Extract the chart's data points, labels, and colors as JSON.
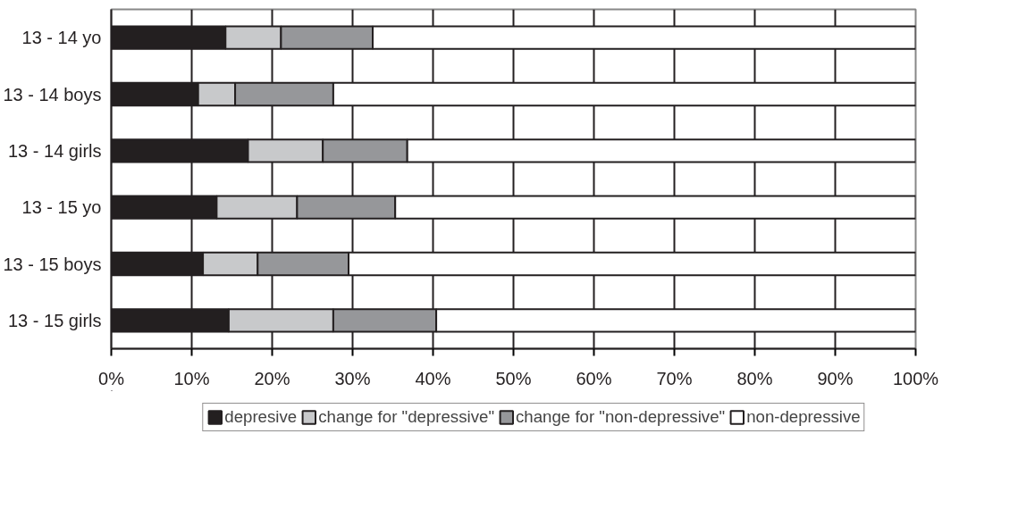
{
  "chart_data": {
    "type": "bar",
    "orientation": "horizontal",
    "stacked": true,
    "categories": [
      "13 - 14 yo",
      "13 - 14 boys",
      "13 - 14 girls",
      "13 - 15 yo",
      "13 - 15 boys",
      "13 - 15 girls"
    ],
    "series": [
      {
        "name": "depresive",
        "color": "#231f20",
        "values": [
          14.2,
          10.8,
          17.0,
          13.1,
          11.4,
          14.6
        ]
      },
      {
        "name": "change for \"depressive\"",
        "color": "#c8c9cb",
        "values": [
          6.9,
          4.6,
          9.3,
          10.0,
          6.8,
          13.0
        ]
      },
      {
        "name": "change for \"non-depressive\"",
        "color": "#96979a",
        "values": [
          11.4,
          12.2,
          10.5,
          12.2,
          11.3,
          12.8
        ]
      },
      {
        "name": "non-depressive",
        "color": "#ffffff",
        "values": [
          67.5,
          72.4,
          63.2,
          64.7,
          70.5,
          59.6
        ]
      }
    ],
    "xlim": [
      0,
      100
    ],
    "xticks": [
      {
        "value": 0,
        "label": "0%"
      },
      {
        "value": 10,
        "label": "10%"
      },
      {
        "value": 20,
        "label": "20%"
      },
      {
        "value": 30,
        "label": "30%"
      },
      {
        "value": 40,
        "label": "40%"
      },
      {
        "value": 50,
        "label": "50%"
      },
      {
        "value": 60,
        "label": "60%"
      },
      {
        "value": 70,
        "label": "70%"
      },
      {
        "value": 80,
        "label": "80%"
      },
      {
        "value": 90,
        "label": "90%"
      },
      {
        "value": 100,
        "label": "100%"
      }
    ],
    "grid": "x",
    "legend": "bottom"
  }
}
